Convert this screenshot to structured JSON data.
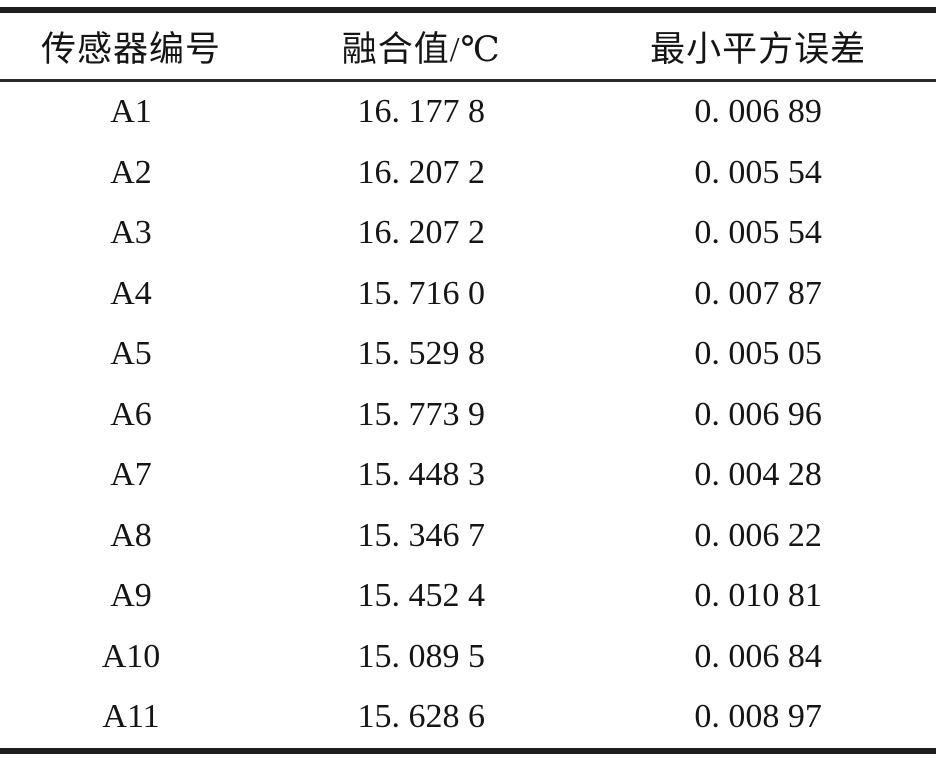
{
  "table": {
    "columns": [
      "传感器编号",
      "融合值/℃",
      "最小平方误差"
    ],
    "rows": [
      {
        "id": "A1",
        "fusion": "16. 177 8",
        "error": "0. 006 89"
      },
      {
        "id": "A2",
        "fusion": "16. 207 2",
        "error": "0. 005 54"
      },
      {
        "id": "A3",
        "fusion": "16. 207 2",
        "error": "0. 005 54"
      },
      {
        "id": "A4",
        "fusion": "15. 716 0",
        "error": "0. 007 87"
      },
      {
        "id": "A5",
        "fusion": "15. 529 8",
        "error": "0. 005 05"
      },
      {
        "id": "A6",
        "fusion": "15. 773 9",
        "error": "0. 006 96"
      },
      {
        "id": "A7",
        "fusion": "15. 448 3",
        "error": "0. 004 28"
      },
      {
        "id": "A8",
        "fusion": "15. 346 7",
        "error": "0. 006 22"
      },
      {
        "id": "A9",
        "fusion": "15. 452 4",
        "error": "0. 010 81"
      },
      {
        "id": "A10",
        "fusion": "15. 089 5",
        "error": "0. 006 84"
      },
      {
        "id": "A11",
        "fusion": "15. 628 6",
        "error": "0. 008 97"
      }
    ],
    "colors": {
      "rule_thick": "#1e1e1e",
      "rule_thin": "#2a2a2a",
      "text": "#151515",
      "background": "#ffffff"
    }
  }
}
